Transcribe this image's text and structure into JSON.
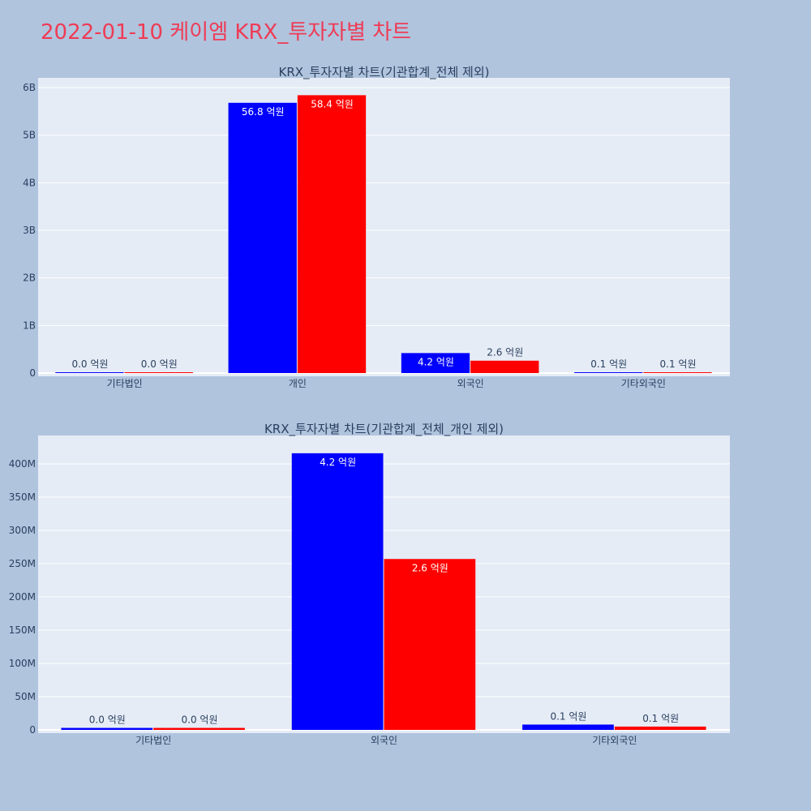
{
  "title": "2022-01-10 케이엠 KRX_투자자별 차트",
  "colors": {
    "background": "#b0c4de",
    "plot_bg": "#e5ecf6",
    "title": "#ef3b55",
    "text": "#2a3f5f",
    "series": [
      "#0000ff",
      "#ff0000"
    ]
  },
  "chart_data": [
    {
      "type": "bar",
      "title": "KRX_투자자별 차트(기관합계_전체 제외)",
      "categories": [
        "기타법인",
        "개인",
        "외국인",
        "기타외국인"
      ],
      "series": [
        {
          "values": [
            0,
            5680000000,
            420000000,
            10000000
          ],
          "labels": [
            "0.0 억원",
            "56.8 억원",
            "4.2 억원",
            "0.1 억원"
          ]
        },
        {
          "values": [
            0,
            5840000000,
            260000000,
            10000000
          ],
          "labels": [
            "0.0 억원",
            "58.4 억원",
            "2.6 억원",
            "0.1 억원"
          ]
        }
      ],
      "ylim": [
        0,
        6000000000
      ],
      "yticks": [
        0,
        1000000000,
        2000000000,
        3000000000,
        4000000000,
        5000000000,
        6000000000
      ],
      "yticklabels": [
        "0",
        "1B",
        "2B",
        "3B",
        "4B",
        "5B",
        "6B"
      ],
      "grid": true
    },
    {
      "type": "bar",
      "title": "KRX_투자자별 차트(기관합계_전체_개인 제외)",
      "categories": [
        "기타법인",
        "외국인",
        "기타외국인"
      ],
      "series": [
        {
          "values": [
            3000000,
            416000000,
            8000000
          ],
          "labels": [
            "0.0 억원",
            "4.2 억원",
            "0.1 억원"
          ]
        },
        {
          "values": [
            3000000,
            257000000,
            5000000
          ],
          "labels": [
            "0.0 억원",
            "2.6 억원",
            "0.1 억원"
          ]
        }
      ],
      "ylim": [
        0,
        420000000
      ],
      "yticks": [
        0,
        50000000,
        100000000,
        150000000,
        200000000,
        250000000,
        300000000,
        350000000,
        400000000
      ],
      "yticklabels": [
        "0",
        "50M",
        "100M",
        "150M",
        "200M",
        "250M",
        "300M",
        "350M",
        "400M"
      ],
      "grid": true
    }
  ]
}
